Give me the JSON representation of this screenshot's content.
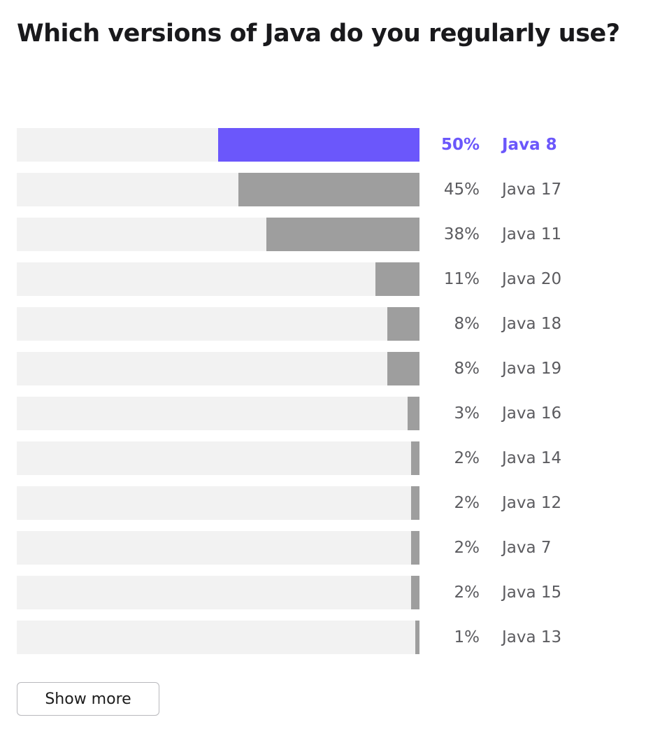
{
  "title": "Which versions of Java do you regularly use?",
  "show_more_label": "Show more",
  "colors": {
    "highlight": "#6b57fb",
    "bar": "#9e9e9e",
    "track": "#f2f2f2"
  },
  "chart_data": {
    "type": "bar",
    "orientation": "horizontal",
    "title": "Which versions of Java do you regularly use?",
    "xlim": [
      0,
      100
    ],
    "grid": false,
    "highlighted_category": "Java 8",
    "categories": [
      "Java 8",
      "Java 17",
      "Java 11",
      "Java 20",
      "Java 18",
      "Java 19",
      "Java 16",
      "Java 14",
      "Java 12",
      "Java 7",
      "Java 15",
      "Java 13"
    ],
    "values": [
      50,
      45,
      38,
      11,
      8,
      8,
      3,
      2,
      2,
      2,
      2,
      1
    ],
    "value_labels": [
      "50%",
      "45%",
      "38%",
      "11%",
      "8%",
      "8%",
      "3%",
      "2%",
      "2%",
      "2%",
      "2%",
      "1%"
    ]
  }
}
